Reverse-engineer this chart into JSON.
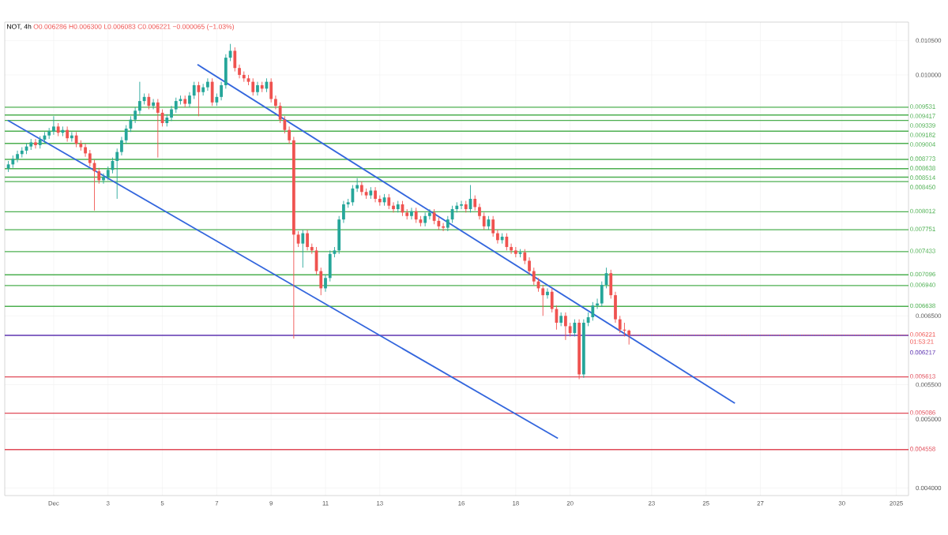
{
  "chart_data": {
    "type": "candlestick",
    "title": "NOT, 4h",
    "subtitle": "O0.006286 H0.006300 L0.006083 C0.006221 −0.000065 (−1.03%)",
    "xlim": [
      "2024-11-29T04:48",
      "2025-01-01T10:48"
    ],
    "xticks": [
      {
        "value": "2024-12-01",
        "label": "Dec"
      },
      {
        "value": "2024-12-03",
        "label": "3"
      },
      {
        "value": "2024-12-05",
        "label": "5"
      },
      {
        "value": "2024-12-07",
        "label": "7"
      },
      {
        "value": "2024-12-09",
        "label": "9"
      },
      {
        "value": "2024-12-11",
        "label": "11"
      },
      {
        "value": "2024-12-13",
        "label": "13"
      },
      {
        "value": "2024-12-16",
        "label": "16"
      },
      {
        "value": "2024-12-18",
        "label": "18"
      },
      {
        "value": "2024-12-20",
        "label": "20"
      },
      {
        "value": "2024-12-23",
        "label": "23"
      },
      {
        "value": "2024-12-25",
        "label": "25"
      },
      {
        "value": "2024-12-27",
        "label": "27"
      },
      {
        "value": "2024-12-30",
        "label": "30"
      },
      {
        "value": "2025-01-01",
        "label": "2025"
      }
    ],
    "ylim": [
      0.00389,
      0.010767
    ],
    "yticks": [
      {
        "value": 0.004,
        "label": "0.004000"
      },
      {
        "value": 0.005,
        "label": "0.005000"
      },
      {
        "value": 0.0055,
        "label": "0.005500"
      },
      {
        "value": 0.0065,
        "label": "0.006500"
      },
      {
        "value": 0.01,
        "label": "0.010000"
      },
      {
        "value": 0.0105,
        "label": "0.010500"
      }
    ],
    "grid": true,
    "series": [
      {
        "x": [
          "2024-11-29T08:00",
          "2024-11-29T12:00",
          "2024-11-29T16:00",
          "2024-11-29T20:00",
          "2024-11-30T00:00",
          "2024-11-30T04:00",
          "2024-11-30T08:00",
          "2024-11-30T12:00",
          "2024-11-30T16:00",
          "2024-11-30T20:00",
          "2024-12-01T00:00",
          "2024-12-01T04:00",
          "2024-12-01T08:00",
          "2024-12-01T12:00",
          "2024-12-01T16:00",
          "2024-12-01T20:00",
          "2024-12-02T00:00",
          "2024-12-02T04:00",
          "2024-12-02T08:00",
          "2024-12-02T12:00",
          "2024-12-02T16:00",
          "2024-12-02T20:00",
          "2024-12-03T00:00",
          "2024-12-03T04:00",
          "2024-12-03T08:00",
          "2024-12-03T12:00",
          "2024-12-03T16:00",
          "2024-12-03T20:00",
          "2024-12-04T00:00",
          "2024-12-04T04:00",
          "2024-12-04T08:00",
          "2024-12-04T12:00",
          "2024-12-04T16:00",
          "2024-12-04T20:00",
          "2024-12-05T00:00",
          "2024-12-05T04:00",
          "2024-12-05T08:00",
          "2024-12-05T12:00",
          "2024-12-05T16:00",
          "2024-12-05T20:00",
          "2024-12-06T00:00",
          "2024-12-06T04:00",
          "2024-12-06T08:00",
          "2024-12-06T12:00",
          "2024-12-06T16:00",
          "2024-12-06T20:00",
          "2024-12-07T00:00",
          "2024-12-07T04:00",
          "2024-12-07T08:00",
          "2024-12-07T12:00",
          "2024-12-07T16:00",
          "2024-12-07T20:00",
          "2024-12-08T00:00",
          "2024-12-08T04:00",
          "2024-12-08T08:00",
          "2024-12-08T12:00",
          "2024-12-08T16:00",
          "2024-12-08T20:00",
          "2024-12-09T00:00",
          "2024-12-09T04:00",
          "2024-12-09T08:00",
          "2024-12-09T12:00",
          "2024-12-09T16:00",
          "2024-12-09T20:00",
          "2024-12-10T00:00",
          "2024-12-10T04:00",
          "2024-12-10T08:00",
          "2024-12-10T12:00",
          "2024-12-10T16:00",
          "2024-12-10T20:00",
          "2024-12-11T00:00",
          "2024-12-11T04:00",
          "2024-12-11T08:00",
          "2024-12-11T12:00",
          "2024-12-11T16:00",
          "2024-12-11T20:00",
          "2024-12-12T00:00",
          "2024-12-12T04:00",
          "2024-12-12T08:00",
          "2024-12-12T12:00",
          "2024-12-12T16:00",
          "2024-12-12T20:00",
          "2024-12-13T00:00",
          "2024-12-13T04:00",
          "2024-12-13T08:00",
          "2024-12-13T12:00",
          "2024-12-13T16:00",
          "2024-12-13T20:00",
          "2024-12-14T00:00",
          "2024-12-14T04:00",
          "2024-12-14T08:00",
          "2024-12-14T12:00",
          "2024-12-14T16:00",
          "2024-12-14T20:00",
          "2024-12-15T00:00",
          "2024-12-15T04:00",
          "2024-12-15T08:00",
          "2024-12-15T12:00",
          "2024-12-15T16:00",
          "2024-12-15T20:00",
          "2024-12-16T00:00",
          "2024-12-16T04:00",
          "2024-12-16T08:00",
          "2024-12-16T12:00",
          "2024-12-16T16:00",
          "2024-12-16T20:00",
          "2024-12-17T00:00",
          "2024-12-17T04:00",
          "2024-12-17T08:00",
          "2024-12-17T12:00",
          "2024-12-17T16:00",
          "2024-12-17T20:00",
          "2024-12-18T00:00",
          "2024-12-18T04:00",
          "2024-12-18T08:00",
          "2024-12-18T12:00",
          "2024-12-18T16:00",
          "2024-12-18T20:00",
          "2024-12-19T00:00",
          "2024-12-19T04:00",
          "2024-12-19T08:00",
          "2024-12-19T12:00",
          "2024-12-19T16:00",
          "2024-12-19T20:00",
          "2024-12-20T00:00",
          "2024-12-20T04:00",
          "2024-12-20T08:00",
          "2024-12-20T12:00",
          "2024-12-20T16:00",
          "2024-12-20T20:00",
          "2024-12-21T00:00",
          "2024-12-21T04:00",
          "2024-12-21T08:00",
          "2024-12-21T12:00",
          "2024-12-21T16:00",
          "2024-12-21T20:00",
          "2024-12-22T00:00",
          "2024-12-22T04:00"
        ],
        "ohlc": [
          [
            0.00864,
            0.00875,
            0.00859,
            0.0087
          ],
          [
            0.0087,
            0.00883,
            0.00865,
            0.00878
          ],
          [
            0.00878,
            0.0089,
            0.00873,
            0.00885
          ],
          [
            0.00885,
            0.00895,
            0.0088,
            0.0089
          ],
          [
            0.0089,
            0.00901,
            0.00885,
            0.00896
          ],
          [
            0.00896,
            0.00907,
            0.00891,
            0.00902
          ],
          [
            0.00902,
            0.00907,
            0.00893,
            0.00898
          ],
          [
            0.00898,
            0.00911,
            0.00893,
            0.00906
          ],
          [
            0.00906,
            0.00917,
            0.00901,
            0.00912
          ],
          [
            0.00912,
            0.00923,
            0.00907,
            0.00918
          ],
          [
            0.00918,
            0.0094,
            0.00913,
            0.00925
          ],
          [
            0.00925,
            0.0093,
            0.00911,
            0.00916
          ],
          [
            0.00916,
            0.00925,
            0.00911,
            0.0092
          ],
          [
            0.0092,
            0.00925,
            0.00903,
            0.00908
          ],
          [
            0.00908,
            0.00917,
            0.00903,
            0.00912
          ],
          [
            0.00912,
            0.00917,
            0.00895,
            0.009
          ],
          [
            0.009,
            0.00905,
            0.0089,
            0.00895
          ],
          [
            0.00895,
            0.009,
            0.00881,
            0.00886
          ],
          [
            0.00886,
            0.00891,
            0.00867,
            0.00872
          ],
          [
            0.00872,
            0.00877,
            0.00803,
            0.0086
          ],
          [
            0.0086,
            0.00865,
            0.00842,
            0.00847
          ],
          [
            0.00847,
            0.00857,
            0.00842,
            0.00852
          ],
          [
            0.00852,
            0.00867,
            0.00847,
            0.00862
          ],
          [
            0.00862,
            0.0088,
            0.00857,
            0.00875
          ],
          [
            0.00875,
            0.00893,
            0.0082,
            0.00888
          ],
          [
            0.00888,
            0.0091,
            0.00883,
            0.00905
          ],
          [
            0.00905,
            0.00927,
            0.009,
            0.00922
          ],
          [
            0.00922,
            0.0094,
            0.00917,
            0.00935
          ],
          [
            0.00935,
            0.00953,
            0.0093,
            0.00948
          ],
          [
            0.00948,
            0.0099,
            0.00943,
            0.00962
          ],
          [
            0.00962,
            0.00973,
            0.00957,
            0.00968
          ],
          [
            0.00968,
            0.00973,
            0.0095,
            0.00955
          ],
          [
            0.00955,
            0.00965,
            0.0095,
            0.0096
          ],
          [
            0.0096,
            0.00965,
            0.0088,
            0.00945
          ],
          [
            0.00945,
            0.0095,
            0.00925,
            0.0093
          ],
          [
            0.0093,
            0.00943,
            0.00925,
            0.00938
          ],
          [
            0.00938,
            0.00955,
            0.00933,
            0.0095
          ],
          [
            0.0095,
            0.00967,
            0.00945,
            0.00962
          ],
          [
            0.00962,
            0.0097,
            0.00957,
            0.00965
          ],
          [
            0.00965,
            0.0097,
            0.00953,
            0.00958
          ],
          [
            0.00958,
            0.00975,
            0.00953,
            0.0097
          ],
          [
            0.0097,
            0.0099,
            0.00965,
            0.00985
          ],
          [
            0.00985,
            0.0099,
            0.0094,
            0.00975
          ],
          [
            0.00975,
            0.00987,
            0.0097,
            0.00982
          ],
          [
            0.00982,
            0.00995,
            0.00977,
            0.0099
          ],
          [
            0.0099,
            0.00995,
            0.00955,
            0.0096
          ],
          [
            0.0096,
            0.00973,
            0.00955,
            0.00968
          ],
          [
            0.00968,
            0.0099,
            0.00963,
            0.00985
          ],
          [
            0.00985,
            0.0103,
            0.0098,
            0.01025
          ],
          [
            0.01025,
            0.01045,
            0.0102,
            0.01035
          ],
          [
            0.01035,
            0.0104,
            0.01005,
            0.0101
          ],
          [
            0.0101,
            0.01015,
            0.00995,
            0.01
          ],
          [
            0.01,
            0.01005,
            0.0099,
            0.00995
          ],
          [
            0.00995,
            0.01,
            0.00985,
            0.0099
          ],
          [
            0.0099,
            0.00995,
            0.0097,
            0.00975
          ],
          [
            0.00975,
            0.0099,
            0.0097,
            0.00985
          ],
          [
            0.00985,
            0.0099,
            0.00975,
            0.0098
          ],
          [
            0.0098,
            0.00995,
            0.00975,
            0.0099
          ],
          [
            0.0099,
            0.00995,
            0.0096,
            0.00965
          ],
          [
            0.00965,
            0.0097,
            0.0095,
            0.00955
          ],
          [
            0.00955,
            0.0096,
            0.0093,
            0.00935
          ],
          [
            0.00935,
            0.0094,
            0.00915,
            0.0092
          ],
          [
            0.0092,
            0.00925,
            0.009,
            0.00905
          ],
          [
            0.00905,
            0.0091,
            0.00617,
            0.00768
          ],
          [
            0.00768,
            0.00773,
            0.0075,
            0.00755
          ],
          [
            0.00755,
            0.00775,
            0.0072,
            0.0077
          ],
          [
            0.0077,
            0.00775,
            0.00745,
            0.0075
          ],
          [
            0.0075,
            0.00755,
            0.0074,
            0.00745
          ],
          [
            0.00745,
            0.0075,
            0.0071,
            0.00715
          ],
          [
            0.00715,
            0.0072,
            0.0068,
            0.0069
          ],
          [
            0.0069,
            0.0071,
            0.00685,
            0.00705
          ],
          [
            0.00705,
            0.00745,
            0.007,
            0.0074
          ],
          [
            0.0074,
            0.0075,
            0.00735,
            0.00745
          ],
          [
            0.00745,
            0.00795,
            0.0074,
            0.0079
          ],
          [
            0.0079,
            0.00817,
            0.00785,
            0.00812
          ],
          [
            0.00812,
            0.0082,
            0.00807,
            0.00815
          ],
          [
            0.00815,
            0.0084,
            0.0081,
            0.00835
          ],
          [
            0.00835,
            0.0085,
            0.0083,
            0.0084
          ],
          [
            0.0084,
            0.00845,
            0.00825,
            0.0083
          ],
          [
            0.0083,
            0.00835,
            0.0082,
            0.00825
          ],
          [
            0.00825,
            0.00837,
            0.0082,
            0.00832
          ],
          [
            0.00832,
            0.00837,
            0.00815,
            0.0082
          ],
          [
            0.0082,
            0.00825,
            0.0081,
            0.00815
          ],
          [
            0.00815,
            0.00827,
            0.0081,
            0.00822
          ],
          [
            0.00822,
            0.00827,
            0.00805,
            0.0081
          ],
          [
            0.0081,
            0.00815,
            0.008,
            0.00805
          ],
          [
            0.00805,
            0.00817,
            0.008,
            0.00812
          ],
          [
            0.00812,
            0.00817,
            0.00795,
            0.008
          ],
          [
            0.008,
            0.00805,
            0.0079,
            0.00795
          ],
          [
            0.00795,
            0.00807,
            0.0079,
            0.00802
          ],
          [
            0.00802,
            0.00807,
            0.00785,
            0.0079
          ],
          [
            0.0079,
            0.00795,
            0.0078,
            0.00785
          ],
          [
            0.00785,
            0.008,
            0.0078,
            0.00795
          ],
          [
            0.00795,
            0.00805,
            0.0079,
            0.008
          ],
          [
            0.008,
            0.00805,
            0.00783,
            0.00788
          ],
          [
            0.00788,
            0.00793,
            0.00775,
            0.0078
          ],
          [
            0.0078,
            0.00785,
            0.00773,
            0.00778
          ],
          [
            0.00778,
            0.00795,
            0.00773,
            0.0079
          ],
          [
            0.0079,
            0.0081,
            0.00785,
            0.00805
          ],
          [
            0.00805,
            0.00815,
            0.008,
            0.0081
          ],
          [
            0.0081,
            0.00817,
            0.00805,
            0.00812
          ],
          [
            0.00812,
            0.00817,
            0.008,
            0.00805
          ],
          [
            0.00805,
            0.0084,
            0.008,
            0.0082
          ],
          [
            0.0082,
            0.00825,
            0.00803,
            0.00808
          ],
          [
            0.00808,
            0.00813,
            0.0079,
            0.00795
          ],
          [
            0.00795,
            0.008,
            0.00775,
            0.0078
          ],
          [
            0.0078,
            0.00795,
            0.00775,
            0.0079
          ],
          [
            0.0079,
            0.00795,
            0.00765,
            0.0077
          ],
          [
            0.0077,
            0.00775,
            0.00755,
            0.0076
          ],
          [
            0.0076,
            0.0077,
            0.00755,
            0.00765
          ],
          [
            0.00765,
            0.0077,
            0.00745,
            0.0075
          ],
          [
            0.0075,
            0.00755,
            0.0074,
            0.00745
          ],
          [
            0.00745,
            0.0075,
            0.00735,
            0.0074
          ],
          [
            0.0074,
            0.00747,
            0.00735,
            0.00742
          ],
          [
            0.00742,
            0.00747,
            0.00725,
            0.0073
          ],
          [
            0.0073,
            0.00735,
            0.0071,
            0.00715
          ],
          [
            0.00715,
            0.0072,
            0.00695,
            0.007
          ],
          [
            0.007,
            0.00705,
            0.00685,
            0.0069
          ],
          [
            0.0069,
            0.00695,
            0.0065,
            0.0068
          ],
          [
            0.0068,
            0.0069,
            0.00675,
            0.00685
          ],
          [
            0.00685,
            0.0069,
            0.00655,
            0.0066
          ],
          [
            0.0066,
            0.00665,
            0.0063,
            0.0064
          ],
          [
            0.0064,
            0.00655,
            0.00635,
            0.0065
          ],
          [
            0.0065,
            0.00655,
            0.00615,
            0.00635
          ],
          [
            0.00635,
            0.0064,
            0.0062,
            0.00625
          ],
          [
            0.00625,
            0.00645,
            0.0062,
            0.0064
          ],
          [
            0.0064,
            0.00645,
            0.00558,
            0.00565
          ],
          [
            0.00565,
            0.00645,
            0.0056,
            0.0064
          ],
          [
            0.0064,
            0.00655,
            0.00635,
            0.00648
          ],
          [
            0.00648,
            0.0067,
            0.00643,
            0.00665
          ],
          [
            0.00665,
            0.00675,
            0.0066,
            0.00668
          ],
          [
            0.00668,
            0.007,
            0.00663,
            0.00695
          ],
          [
            0.00695,
            0.0072,
            0.0069,
            0.00712
          ],
          [
            0.00712,
            0.00717,
            0.00675,
            0.0068
          ],
          [
            0.0068,
            0.00685,
            0.0064,
            0.00645
          ],
          [
            0.00645,
            0.0065,
            0.00625,
            0.0063
          ],
          [
            0.0063,
            0.0064,
            0.0062,
            0.006286
          ],
          [
            0.006286,
            0.0063,
            0.006083,
            0.006221
          ]
        ]
      },
      {
        "type": "line",
        "color": "#3366dd",
        "x": [
          "2024-12-06T07:00",
          "2024-12-26T01:30"
        ],
        "values": [
          0.01015,
          0.00523
        ]
      },
      {
        "type": "line",
        "color": "#3366dd",
        "x": [
          "2024-11-29T07:30",
          "2024-12-19T13:12"
        ],
        "values": [
          0.00934,
          0.00472
        ]
      }
    ],
    "ref_lines": [
      {
        "axis": "y",
        "value": 0.009531,
        "label": "0.009531",
        "color": "#4caf50"
      },
      {
        "axis": "y",
        "value": 0.009417,
        "label": "0.009417",
        "color": "#4caf50"
      },
      {
        "axis": "y",
        "value": 0.009339,
        "label": "0.009339",
        "color": "#4caf50"
      },
      {
        "axis": "y",
        "value": 0.009182,
        "label": "0.009182",
        "color": "#4caf50"
      },
      {
        "axis": "y",
        "value": 0.009004,
        "label": "0.009004",
        "color": "#4caf50"
      },
      {
        "axis": "y",
        "value": 0.008773,
        "label": "0.008773",
        "color": "#4caf50"
      },
      {
        "axis": "y",
        "value": 0.008638,
        "label": "0.008638",
        "color": "#4caf50"
      },
      {
        "axis": "y",
        "value": 0.008514,
        "label": "0.008514",
        "color": "#4caf50"
      },
      {
        "axis": "y",
        "value": 0.00845,
        "label": "0.008450",
        "color": "#4caf50"
      },
      {
        "axis": "y",
        "value": 0.008012,
        "label": "0.008012",
        "color": "#4caf50"
      },
      {
        "axis": "y",
        "value": 0.007751,
        "label": "0.007751",
        "color": "#4caf50"
      },
      {
        "axis": "y",
        "value": 0.007433,
        "label": "0.007433",
        "color": "#4caf50"
      },
      {
        "axis": "y",
        "value": 0.007096,
        "label": "0.007096",
        "color": "#4caf50"
      },
      {
        "axis": "y",
        "value": 0.00694,
        "label": "0.006940",
        "color": "#4caf50"
      },
      {
        "axis": "y",
        "value": 0.006638,
        "label": "0.006638",
        "color": "#4caf50"
      },
      {
        "axis": "y",
        "value": 0.006217,
        "label": "0.006217",
        "color": "#5e35b1"
      },
      {
        "axis": "y",
        "value": 0.005613,
        "label": "0.005613",
        "color": "#e04b58"
      },
      {
        "axis": "y",
        "value": 0.005086,
        "label": "0.005086",
        "color": "#e04b58"
      },
      {
        "axis": "y",
        "value": 0.004558,
        "label": "0.004558",
        "color": "#e04b58"
      }
    ],
    "annotations": [
      {
        "text": "0.006221",
        "x": "2024-12-22T04:00",
        "y": 0.006221
      },
      {
        "text": "01:53:21",
        "x": "2024-12-22T04:00",
        "y": 0.006221
      }
    ]
  }
}
